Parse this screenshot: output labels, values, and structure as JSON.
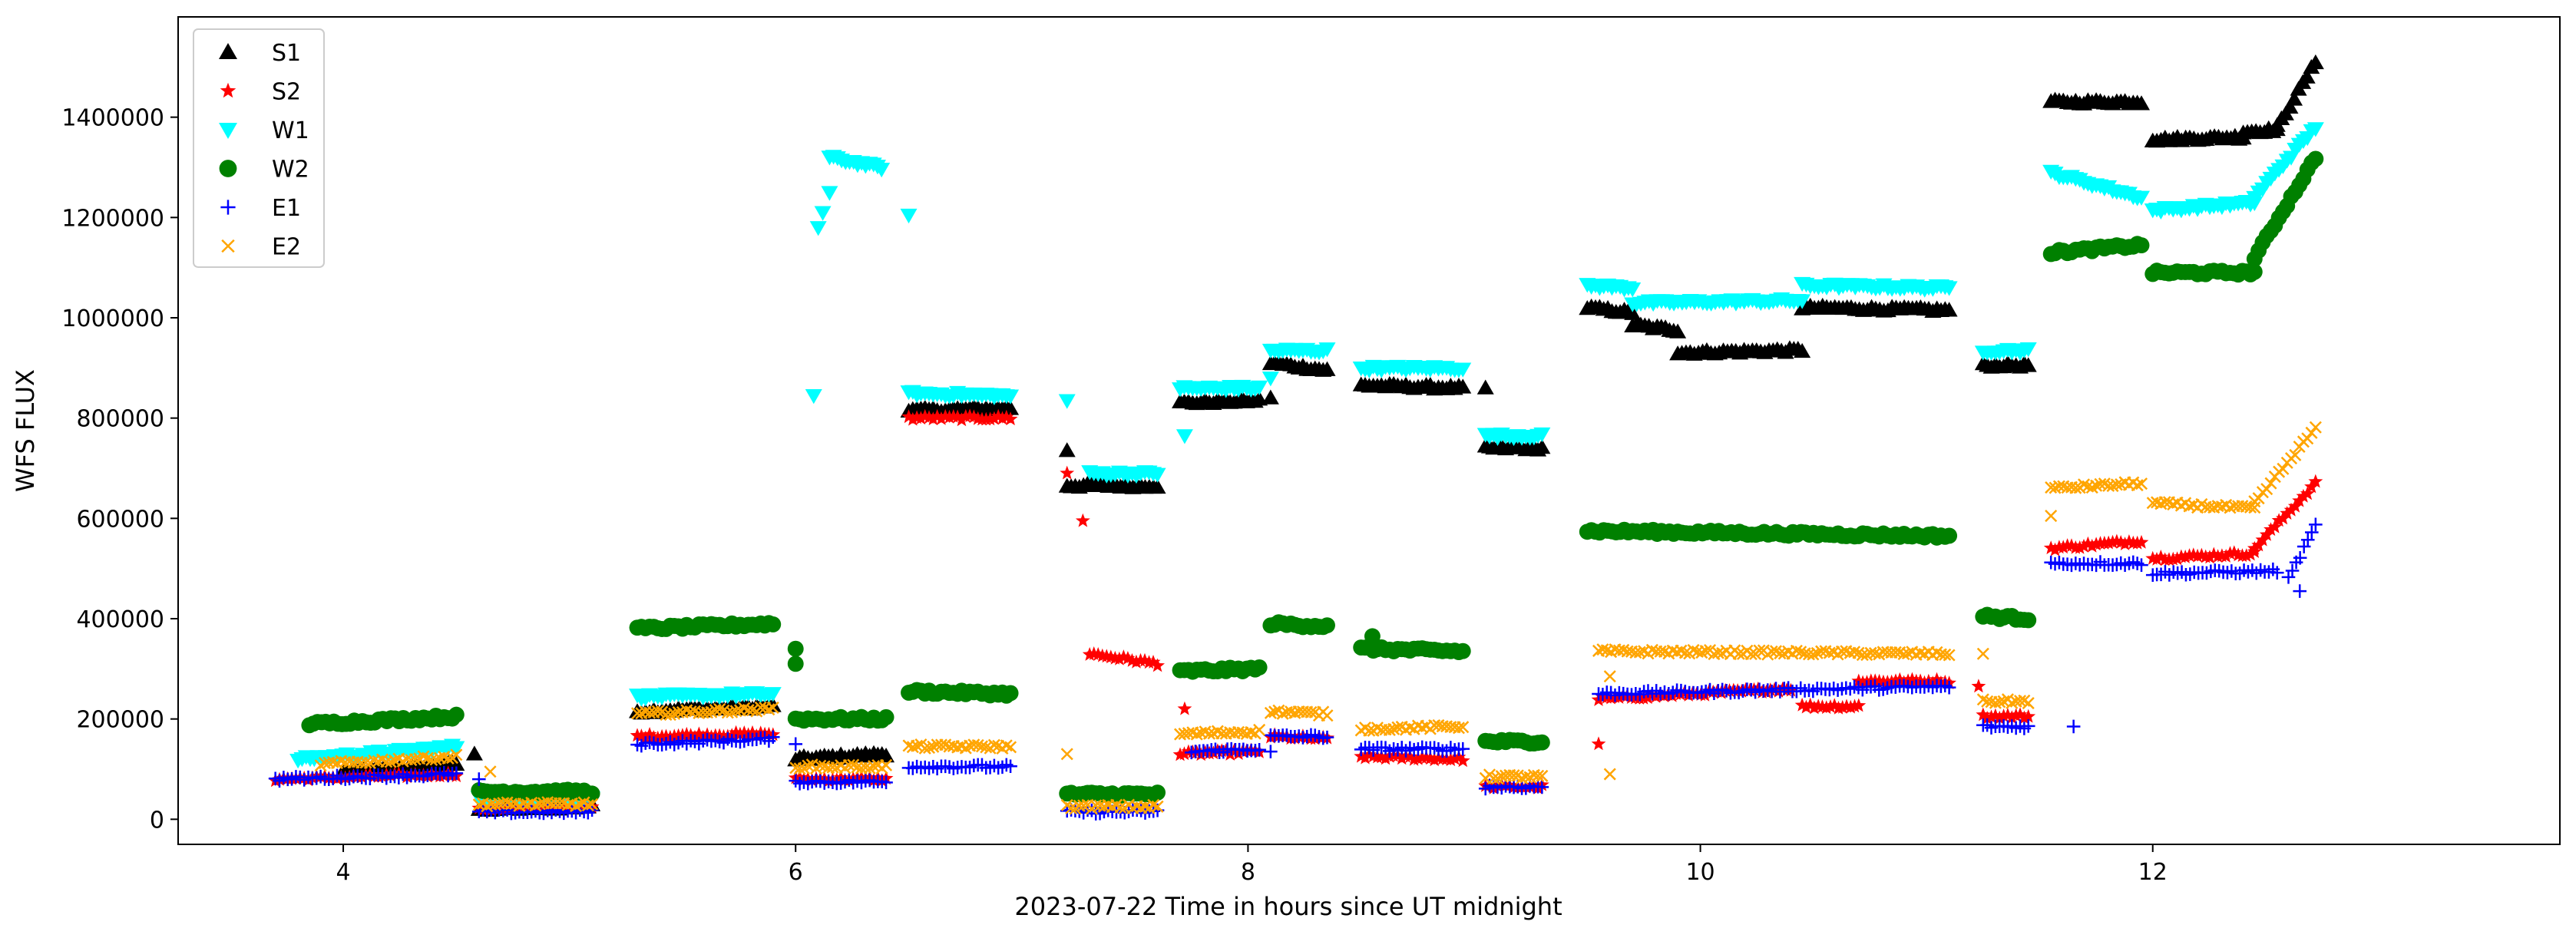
{
  "chart_data": {
    "type": "scatter",
    "xlabel": "2023-07-22  Time in hours since UT midnight",
    "ylabel": "WFS FLUX",
    "xlim": [
      3.27,
      13.8
    ],
    "ylim": [
      -50000,
      1600000
    ],
    "x_ticks": [
      4,
      6,
      8,
      10,
      12
    ],
    "y_ticks": [
      0,
      200000,
      400000,
      600000,
      800000,
      1000000,
      1200000,
      1400000
    ],
    "x_tick_labels": [
      "4",
      "6",
      "8",
      "10",
      "12"
    ],
    "y_tick_labels": [
      "0",
      "200000",
      "400000",
      "600000",
      "800000",
      "1000000",
      "1200000",
      "1400000"
    ],
    "grid": false,
    "legend_position": "top-left",
    "series": [
      {
        "name": "S1",
        "marker": "triangle-up",
        "color": "#000000",
        "segments": [
          [
            4.0,
            4.5,
            95000,
            110000
          ],
          [
            4.6,
            5.1,
            20000,
            25000
          ],
          [
            5.3,
            5.9,
            215000,
            225000
          ],
          [
            6.0,
            6.4,
            120000,
            130000
          ],
          [
            6.5,
            6.95,
            815000,
            820000
          ],
          [
            7.2,
            7.6,
            665000,
            665000
          ],
          [
            7.7,
            8.05,
            830000,
            835000
          ],
          [
            8.1,
            8.35,
            910000,
            895000
          ],
          [
            8.5,
            8.95,
            865000,
            860000
          ],
          [
            9.05,
            9.3,
            740000,
            740000
          ],
          [
            9.5,
            9.7,
            1020000,
            1010000
          ],
          [
            9.7,
            9.9,
            985000,
            975000
          ],
          [
            9.9,
            10.45,
            930000,
            935000
          ],
          [
            10.45,
            11.1,
            1020000,
            1015000
          ],
          [
            11.25,
            11.45,
            905000,
            905000
          ],
          [
            11.55,
            11.95,
            1430000,
            1430000
          ],
          [
            12.0,
            12.4,
            1355000,
            1360000
          ],
          [
            12.4,
            12.55,
            1370000,
            1375000
          ],
          [
            12.55,
            12.72,
            1380000,
            1510000
          ]
        ],
        "points": [
          [
            4.58,
            130000
          ],
          [
            7.2,
            735000
          ],
          [
            8.1,
            840000
          ],
          [
            9.05,
            860000
          ]
        ]
      },
      {
        "name": "S2",
        "marker": "star",
        "color": "#ff0000",
        "segments": [
          [
            3.7,
            4.5,
            80000,
            90000
          ],
          [
            4.6,
            5.1,
            20000,
            25000
          ],
          [
            5.3,
            5.9,
            165000,
            170000
          ],
          [
            6.0,
            6.4,
            80000,
            80000
          ],
          [
            6.5,
            6.95,
            800000,
            800000
          ],
          [
            7.3,
            7.6,
            330000,
            310000
          ],
          [
            7.7,
            8.05,
            130000,
            135000
          ],
          [
            8.1,
            8.35,
            165000,
            160000
          ],
          [
            8.5,
            8.95,
            125000,
            120000
          ],
          [
            9.05,
            9.3,
            65000,
            65000
          ],
          [
            9.55,
            10.4,
            240000,
            260000
          ],
          [
            10.45,
            10.7,
            225000,
            225000
          ],
          [
            10.7,
            11.1,
            275000,
            275000
          ],
          [
            11.25,
            11.45,
            205000,
            205000
          ],
          [
            11.55,
            11.95,
            540000,
            555000
          ],
          [
            12.0,
            12.45,
            520000,
            530000
          ],
          [
            12.45,
            12.72,
            540000,
            670000
          ]
        ],
        "points": [
          [
            7.2,
            690000
          ],
          [
            7.27,
            595000
          ],
          [
            7.72,
            220000
          ],
          [
            9.55,
            150000
          ],
          [
            11.23,
            265000
          ]
        ]
      },
      {
        "name": "W1",
        "marker": "triangle-down",
        "color": "#00ffff",
        "segments": [
          [
            3.8,
            4.5,
            120000,
            145000
          ],
          [
            4.6,
            5.1,
            45000,
            45000
          ],
          [
            5.3,
            5.9,
            245000,
            250000
          ],
          [
            6.15,
            6.38,
            1320000,
            1300000
          ],
          [
            6.5,
            6.95,
            850000,
            845000
          ],
          [
            7.3,
            7.6,
            690000,
            690000
          ],
          [
            7.7,
            8.05,
            860000,
            860000
          ],
          [
            8.1,
            8.35,
            935000,
            935000
          ],
          [
            8.5,
            8.95,
            900000,
            900000
          ],
          [
            9.05,
            9.3,
            765000,
            765000
          ],
          [
            9.5,
            9.7,
            1065000,
            1060000
          ],
          [
            9.7,
            10.45,
            1030000,
            1035000
          ],
          [
            10.45,
            11.1,
            1065000,
            1060000
          ],
          [
            11.25,
            11.45,
            935000,
            935000
          ],
          [
            11.55,
            11.95,
            1290000,
            1240000
          ],
          [
            12.0,
            12.45,
            1215000,
            1230000
          ],
          [
            12.45,
            12.72,
            1240000,
            1380000
          ]
        ],
        "points": [
          [
            6.1,
            1180000
          ],
          [
            6.12,
            1210000
          ],
          [
            6.15,
            1250000
          ],
          [
            6.08,
            845000
          ],
          [
            6.5,
            1205000
          ],
          [
            7.2,
            835000
          ],
          [
            7.72,
            765000
          ],
          [
            8.1,
            880000
          ]
        ]
      },
      {
        "name": "W2",
        "marker": "circle",
        "color": "#008000",
        "segments": [
          [
            3.85,
            4.5,
            190000,
            205000
          ],
          [
            4.6,
            5.1,
            55000,
            55000
          ],
          [
            5.3,
            5.9,
            380000,
            390000
          ],
          [
            6.0,
            6.4,
            200000,
            200000
          ],
          [
            6.5,
            6.95,
            255000,
            250000
          ],
          [
            7.2,
            7.6,
            50000,
            50000
          ],
          [
            7.7,
            8.05,
            295000,
            300000
          ],
          [
            8.1,
            8.35,
            390000,
            385000
          ],
          [
            8.5,
            8.95,
            340000,
            335000
          ],
          [
            9.05,
            9.3,
            155000,
            155000
          ],
          [
            9.5,
            11.1,
            575000,
            565000
          ],
          [
            11.25,
            11.45,
            405000,
            400000
          ],
          [
            11.55,
            11.95,
            1130000,
            1145000
          ],
          [
            12.0,
            12.45,
            1090000,
            1090000
          ],
          [
            12.45,
            12.72,
            1120000,
            1320000
          ]
        ],
        "points": [
          [
            6.0,
            340000
          ],
          [
            6.0,
            310000
          ],
          [
            8.55,
            365000
          ]
        ]
      },
      {
        "name": "E1",
        "marker": "plus",
        "color": "#0000ff",
        "segments": [
          [
            3.7,
            4.5,
            80000,
            90000
          ],
          [
            4.6,
            5.1,
            15000,
            15000
          ],
          [
            5.3,
            5.9,
            150000,
            160000
          ],
          [
            6.0,
            6.4,
            75000,
            75000
          ],
          [
            6.5,
            6.95,
            105000,
            105000
          ],
          [
            7.2,
            7.6,
            15000,
            15000
          ],
          [
            7.75,
            8.05,
            135000,
            140000
          ],
          [
            8.1,
            8.35,
            165000,
            165000
          ],
          [
            8.5,
            8.95,
            140000,
            140000
          ],
          [
            9.05,
            9.3,
            65000,
            65000
          ],
          [
            9.55,
            11.1,
            250000,
            265000
          ],
          [
            11.25,
            11.45,
            185000,
            185000
          ],
          [
            11.55,
            11.95,
            510000,
            510000
          ],
          [
            12.0,
            12.55,
            490000,
            495000
          ],
          [
            12.6,
            12.72,
            480000,
            585000
          ]
        ],
        "points": [
          [
            6.0,
            150000
          ],
          [
            8.1,
            135000
          ],
          [
            11.65,
            185000
          ],
          [
            12.65,
            455000
          ],
          [
            4.6,
            80000
          ]
        ]
      },
      {
        "name": "E2",
        "marker": "x",
        "color": "#ffa500",
        "segments": [
          [
            3.9,
            4.5,
            110000,
            125000
          ],
          [
            4.6,
            5.1,
            30000,
            30000
          ],
          [
            5.3,
            5.9,
            210000,
            220000
          ],
          [
            6.0,
            6.4,
            105000,
            105000
          ],
          [
            6.5,
            6.95,
            145000,
            145000
          ],
          [
            7.2,
            7.6,
            25000,
            25000
          ],
          [
            7.7,
            8.05,
            170000,
            175000
          ],
          [
            8.1,
            8.35,
            215000,
            210000
          ],
          [
            8.5,
            8.95,
            180000,
            185000
          ],
          [
            9.05,
            9.3,
            85000,
            85000
          ],
          [
            9.55,
            11.1,
            335000,
            330000
          ],
          [
            11.25,
            11.45,
            235000,
            235000
          ],
          [
            11.55,
            11.95,
            660000,
            670000
          ],
          [
            12.0,
            12.45,
            630000,
            620000
          ],
          [
            12.45,
            12.72,
            630000,
            780000
          ]
        ],
        "points": [
          [
            4.65,
            95000
          ],
          [
            7.2,
            130000
          ],
          [
            9.6,
            90000
          ],
          [
            9.6,
            285000
          ],
          [
            11.25,
            330000
          ],
          [
            11.55,
            605000
          ]
        ]
      }
    ]
  }
}
